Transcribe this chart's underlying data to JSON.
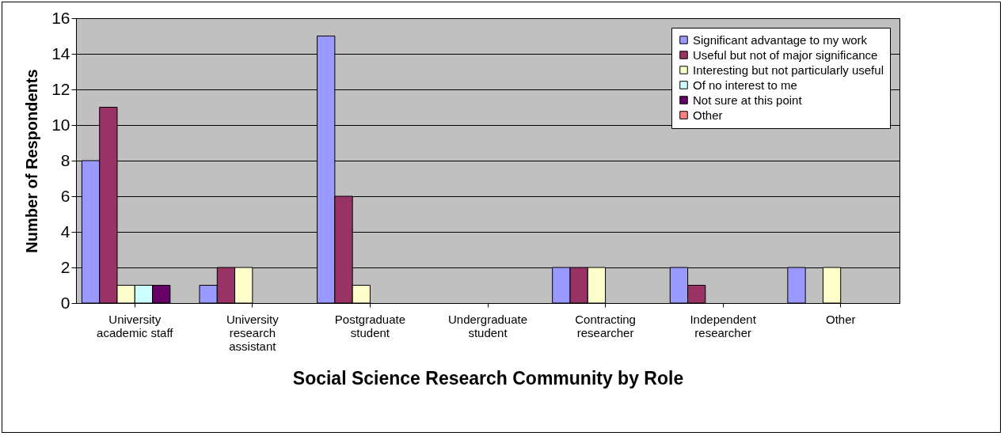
{
  "chart_data": {
    "type": "bar",
    "xlabel": "Social Science Research Community by Role",
    "ylabel": "Number of Respondents",
    "categories": [
      "University academic staff",
      "University research assistant",
      "Postgraduate student",
      "Undergraduate student",
      "Contracting researcher",
      "Independent researcher",
      "Other"
    ],
    "series": [
      {
        "name": "Significant advantage to my work",
        "color": "#9999ff",
        "values": [
          8,
          1,
          15,
          null,
          2,
          2,
          2
        ]
      },
      {
        "name": "Useful but not of major significance",
        "color": "#993366",
        "values": [
          11,
          2,
          6,
          null,
          2,
          1,
          null
        ]
      },
      {
        "name": "Interesting but not particularly useful",
        "color": "#ffffcc",
        "values": [
          1,
          2,
          1,
          null,
          2,
          null,
          2
        ]
      },
      {
        "name": "Of no interest to me",
        "color": "#ccffff",
        "values": [
          1,
          null,
          null,
          null,
          null,
          null,
          null
        ]
      },
      {
        "name": "Not sure at this point",
        "color": "#660066",
        "values": [
          1,
          null,
          null,
          null,
          null,
          null,
          null
        ]
      },
      {
        "name": "Other",
        "color": "#ff8080",
        "values": [
          null,
          null,
          null,
          null,
          null,
          null,
          null
        ]
      }
    ],
    "ylim": [
      0,
      16
    ],
    "yticks": [
      0,
      2,
      4,
      6,
      8,
      10,
      12,
      14,
      16
    ],
    "grid": "y",
    "legend": "top right"
  }
}
